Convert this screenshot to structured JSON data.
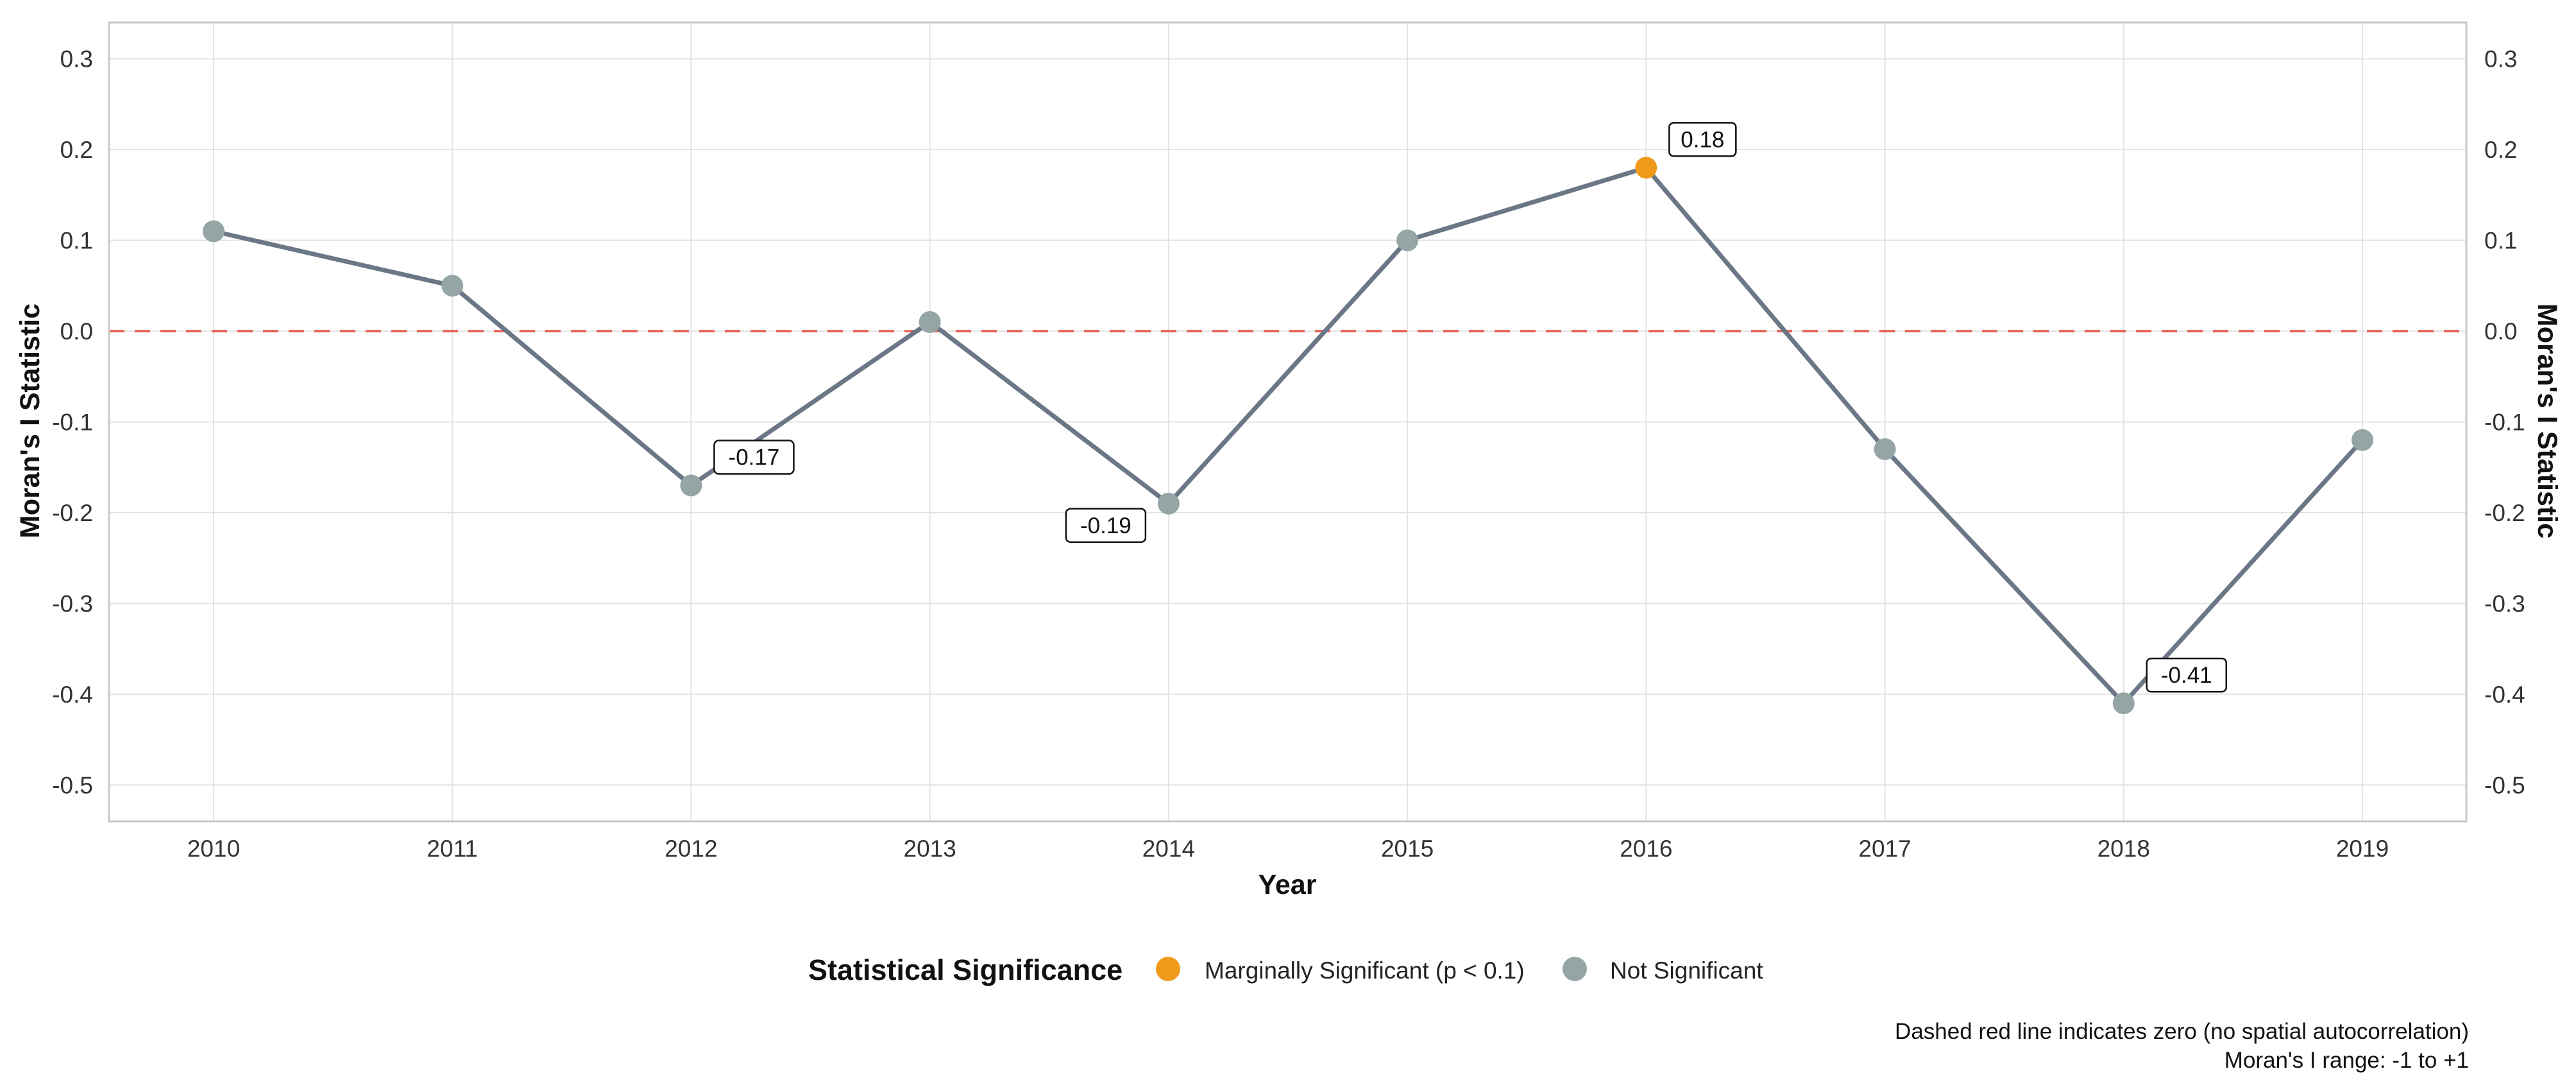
{
  "chart_data": {
    "type": "line",
    "title": "",
    "xlabel": "Year",
    "ylabel": "Moran's I Statistic",
    "ylabel_right": "Moran's I Statistic",
    "x": [
      "2010",
      "2011",
      "2012",
      "2013",
      "2014",
      "2015",
      "2016",
      "2017",
      "2018",
      "2019"
    ],
    "series": [
      {
        "values": [
          0.11,
          0.05,
          -0.17,
          0.01,
          -0.19,
          0.1,
          0.18,
          -0.13,
          -0.41,
          -0.12
        ],
        "significance": [
          "Not Significant",
          "Not Significant",
          "Not Significant",
          "Not Significant",
          "Not Significant",
          "Not Significant",
          "Marginally Significant (p < 0.1)",
          "Not Significant",
          "Not Significant",
          "Not Significant"
        ]
      }
    ],
    "y_ticks": [
      "0.3",
      "0.2",
      "0.1",
      "0.0",
      "-0.1",
      "-0.2",
      "-0.3",
      "-0.4",
      "-0.5"
    ],
    "ylim": [
      -0.54,
      0.34
    ],
    "reference_line": {
      "y": 0.0,
      "style": "dashed",
      "color": "#E8675B"
    },
    "annotations": [
      {
        "x": "2012",
        "text": "-0.17",
        "side": "right"
      },
      {
        "x": "2014",
        "text": "-0.19",
        "side": "left"
      },
      {
        "x": "2016",
        "text": "0.18",
        "side": "right"
      },
      {
        "x": "2018",
        "text": "-0.41",
        "side": "right"
      }
    ],
    "legend": {
      "title": "Statistical Significance",
      "placement": "bottom",
      "entries": [
        {
          "label": "Marginally Significant (p < 0.1)",
          "color": "#F09A1B"
        },
        {
          "label": "Not Significant",
          "color": "#95A5A6"
        }
      ]
    },
    "caption": [
      "Dashed red line indicates zero (no spatial autocorrelation)",
      "Moran's I range: -1 to +1"
    ],
    "grid": true,
    "colors": {
      "line": "#6B7687",
      "panel_border": "#C9C9C9",
      "grid": "#E3E3E3"
    }
  }
}
